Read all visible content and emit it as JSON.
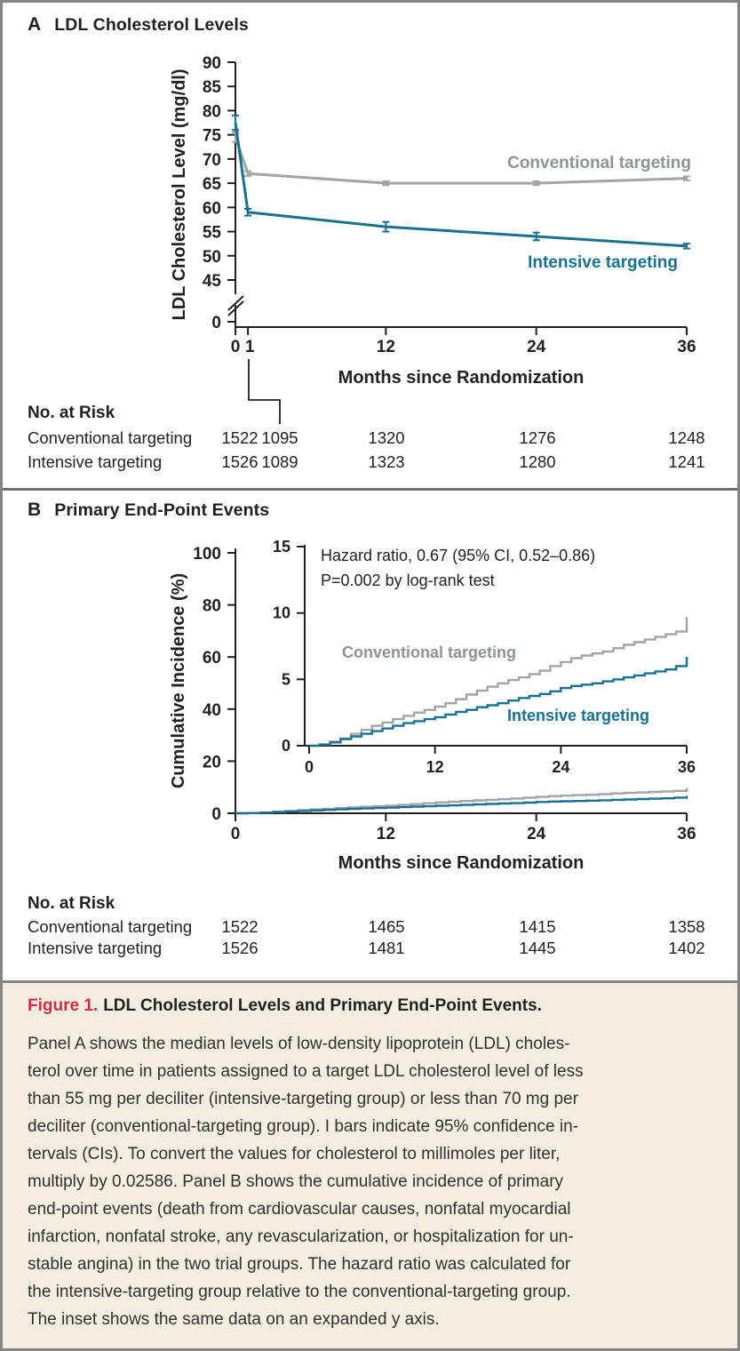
{
  "colors": {
    "intensive": "#19708f",
    "conventional": "#a2a4a6",
    "conventional_label": "#8e9496",
    "ink": "#231f20",
    "figure_red": "#d02e44",
    "caption_bg": "#f3eee1",
    "border": "#858585"
  },
  "panelA": {
    "letter": "A",
    "title": "LDL Cholesterol Levels",
    "ylabel": "LDL Cholesterol Level (mg/dl)",
    "xlabel": "Months since Randomization",
    "labels": {
      "conventional": "Conventional targeting",
      "intensive": "Intensive targeting"
    },
    "risk": {
      "heading": "No. at Risk",
      "rows": [
        {
          "label": "Conventional targeting",
          "values": [
            "1522",
            "1095",
            "1320",
            "1276",
            "1248"
          ]
        },
        {
          "label": "Intensive targeting",
          "values": [
            "1526",
            "1089",
            "1323",
            "1280",
            "1241"
          ]
        }
      ]
    }
  },
  "panelB": {
    "letter": "B",
    "title": "Primary End-Point Events",
    "ylabel": "Cumulative Incidence (%)",
    "xlabel": "Months since Randomization",
    "annotation": [
      "Hazard ratio, 0.67 (95% CI, 0.52–0.86)",
      "P=0.002 by log-rank test"
    ],
    "labels": {
      "conventional": "Conventional targeting",
      "intensive": "Intensive targeting"
    },
    "risk": {
      "heading": "No. at Risk",
      "rows": [
        {
          "label": "Conventional targeting",
          "values": [
            "1522",
            "1465",
            "1415",
            "1358"
          ]
        },
        {
          "label": "Intensive targeting",
          "values": [
            "1526",
            "1481",
            "1445",
            "1402"
          ]
        }
      ]
    }
  },
  "caption": {
    "label": "Figure 1.",
    "title": "LDL Cholesterol Levels and Primary End-Point Events.",
    "lines": [
      "Panel A shows the median levels of low-density lipoprotein (LDL) choles-",
      "terol over time in patients assigned to a target LDL cholesterol level of less",
      "than 55 mg per deciliter (intensive-targeting group) or less than 70 mg per",
      "deciliter (conventional-targeting group). I bars indicate 95% confidence in-",
      "tervals (CIs). To convert the values for cholesterol to millimoles per liter,",
      "multiply by 0.02586. Panel B shows the cumulative incidence of primary",
      "end-point events (death from cardiovascular causes, nonfatal myocardial",
      "infarction, nonfatal stroke, any revascularization, or hospitalization for un-",
      "stable angina) in the two trial groups. The hazard ratio was calculated for",
      "the intensive-targeting group relative to the conventional-targeting group.",
      "The inset shows the same data on an expanded y axis."
    ]
  },
  "chart_data": [
    {
      "id": "panelA",
      "type": "line",
      "title": "LDL Cholesterol Levels",
      "xlabel": "Months since Randomization",
      "ylabel": "LDL Cholesterol Level (mg/dl)",
      "x_ticks": [
        0,
        1,
        12,
        24,
        36
      ],
      "y_ticks": [
        90,
        85,
        80,
        75,
        70,
        65,
        60,
        55,
        50,
        45
      ],
      "y_axis_break_to_zero": true,
      "xlim": [
        0,
        36
      ],
      "ylim": [
        45,
        90
      ],
      "grid": false,
      "series": [
        {
          "name": "Conventional targeting",
          "color": "conventional",
          "x": [
            0,
            1,
            12,
            24,
            36
          ],
          "y": [
            74.5,
            67,
            65,
            65,
            66
          ],
          "ci_half_width": [
            1.0,
            0.5,
            0.4,
            0.4,
            0.4
          ]
        },
        {
          "name": "Intensive targeting",
          "color": "intensive",
          "x": [
            0,
            1,
            12,
            24,
            36
          ],
          "y": [
            77.5,
            59,
            56,
            54,
            52
          ],
          "ci_half_width": [
            1.5,
            0.7,
            1.0,
            0.8,
            0.5
          ]
        }
      ]
    },
    {
      "id": "panelB",
      "type": "line",
      "subtype": "step",
      "title": "Primary End-Point Events",
      "xlabel": "Months since Randomization",
      "ylabel": "Cumulative Incidence (%)",
      "annotation": [
        "Hazard ratio, 0.67 (95% CI, 0.52–0.86)",
        "P=0.002 by log-rank test"
      ],
      "main": {
        "x_ticks": [
          0,
          12,
          24,
          36
        ],
        "y_ticks": [
          0,
          20,
          40,
          60,
          80,
          100
        ],
        "ylim": [
          0,
          100
        ]
      },
      "inset": {
        "x_ticks": [
          0,
          12,
          24,
          36
        ],
        "y_ticks": [
          0,
          5,
          10,
          15
        ],
        "ylim": [
          0,
          15
        ]
      },
      "series": [
        {
          "name": "Conventional targeting",
          "color": "conventional",
          "x": [
            0,
            1,
            2,
            3,
            4,
            5,
            6,
            7,
            8,
            9,
            10,
            11,
            12,
            13,
            14,
            15,
            16,
            17,
            18,
            19,
            20,
            21,
            22,
            23,
            24,
            25,
            26,
            27,
            28,
            29,
            30,
            31,
            32,
            33,
            34,
            35,
            36
          ],
          "y": [
            0,
            0.1,
            0.3,
            0.55,
            0.9,
            1.2,
            1.5,
            1.75,
            2.0,
            2.25,
            2.5,
            2.7,
            2.95,
            3.2,
            3.5,
            3.85,
            4.15,
            4.45,
            4.7,
            4.95,
            5.15,
            5.4,
            5.65,
            6.0,
            6.3,
            6.6,
            6.8,
            6.95,
            7.1,
            7.35,
            7.6,
            7.8,
            8.0,
            8.2,
            8.4,
            8.6,
            9.7
          ]
        },
        {
          "name": "Intensive targeting",
          "color": "intensive",
          "x": [
            0,
            1,
            2,
            3,
            4,
            5,
            6,
            7,
            8,
            9,
            10,
            11,
            12,
            13,
            14,
            15,
            16,
            17,
            18,
            19,
            20,
            21,
            22,
            23,
            24,
            25,
            26,
            27,
            28,
            29,
            30,
            31,
            32,
            33,
            34,
            35,
            36
          ],
          "y": [
            0,
            0.08,
            0.25,
            0.5,
            0.7,
            0.9,
            1.1,
            1.3,
            1.5,
            1.7,
            1.85,
            2.0,
            2.15,
            2.35,
            2.55,
            2.7,
            2.9,
            3.05,
            3.2,
            3.4,
            3.6,
            3.75,
            3.9,
            4.1,
            4.35,
            4.5,
            4.6,
            4.7,
            4.85,
            5.0,
            5.15,
            5.3,
            5.45,
            5.6,
            5.75,
            6.0,
            6.7
          ]
        }
      ]
    }
  ]
}
